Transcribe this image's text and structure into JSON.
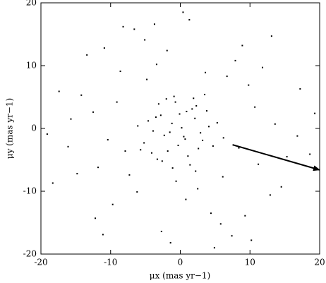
{
  "chart_data": {
    "type": "scatter",
    "xlabel": "μx (mas yr−1)",
    "ylabel": "μy (mas yr−1)",
    "xlim": [
      -20,
      20
    ],
    "ylim": [
      -20,
      20
    ],
    "xticks": [
      -20,
      -10,
      0,
      10,
      20
    ],
    "yticks": [
      -20,
      -10,
      0,
      10,
      20
    ],
    "color": "#000000",
    "grid": false,
    "x": [
      -1.2,
      0.5,
      -2.8,
      2.1,
      -0.3,
      1.7,
      -3.9,
      3.2,
      -1.8,
      0.9,
      -4.6,
      4.1,
      -0.7,
      2.6,
      -2.3,
      1.1,
      -5.2,
      3.8,
      -3.1,
      0.2,
      -1.5,
      4.7,
      -4.1,
      1.9,
      -0.9,
      5.3,
      -2.6,
      2.9,
      -3.5,
      0.7,
      -6.1,
      6.2,
      -1.1,
      3.5,
      -5.7,
      2.3,
      -0.1,
      -2.0,
      1.4,
      -3.3,
      8.4,
      -9.1,
      11.2,
      -12.5,
      6.7,
      -7.3,
      9.8,
      -10.4,
      13.6,
      -14.2,
      2.5,
      -3.4,
      0.8,
      -1.9,
      15.3,
      -16.1,
      7.9,
      -8.6,
      10.7,
      -11.8,
      4.4,
      -5.1,
      17.2,
      -18.3,
      12.9,
      -13.4,
      5.8,
      -6.6,
      1.3,
      -2.7,
      14.5,
      -9.7,
      8.9,
      -4.8,
      3.6,
      -15.7,
      16.8,
      -12.2,
      6.1,
      -7.9,
      9.3,
      -10.9,
      11.8,
      -1.4,
      0.4,
      -17.4,
      18.6,
      -6.2,
      7.4,
      -3.7,
      2.2,
      -19.1,
      19.3,
      -8.2,
      13.1,
      -11.1,
      4.9,
      -14.8,
      10.2,
      -0.6
    ],
    "y": [
      0.8,
      -1.3,
      2.1,
      1.6,
      -2.7,
      3.1,
      -0.4,
      -1.9,
      -3.6,
      2.7,
      1.2,
      0.3,
      4.2,
      -3.2,
      -1.1,
      -4.4,
      -2.3,
      2.8,
      3.9,
      0.1,
      -0.6,
      -2.8,
      -3.9,
      4.8,
      5.1,
      0.9,
      -5.2,
      -0.7,
      1.8,
      -1.7,
      0.4,
      -1.5,
      -6.3,
      5.4,
      -3.4,
      3.6,
      2.3,
      4.7,
      -5.8,
      -4.9,
      -3.1,
      4.2,
      -5.7,
      2.6,
      8.3,
      -7.4,
      6.9,
      -1.8,
      0.7,
      5.3,
      -9.6,
      10.2,
      -11.3,
      12.4,
      -4.5,
      -2.9,
      10.8,
      9.1,
      3.4,
      -6.2,
      -13.5,
      14.1,
      6.3,
      -8.7,
      -10.6,
      11.7,
      -15.2,
      15.8,
      17.3,
      -16.4,
      -9.3,
      -12.1,
      13.2,
      7.8,
      8.9,
      1.5,
      -1.2,
      -14.3,
      -7.7,
      -3.6,
      -13.9,
      12.8,
      9.7,
      -18.2,
      18.5,
      5.9,
      -4.1,
      -10.1,
      -17.1,
      16.6,
      -6.8,
      -0.9,
      2.4,
      16.2,
      14.7,
      -16.9,
      -19.0,
      -7.2,
      -17.8,
      -8.4
    ],
    "arrow": {
      "from": [
        7.5,
        -2.6
      ],
      "to": [
        20,
        -6.6
      ]
    }
  }
}
